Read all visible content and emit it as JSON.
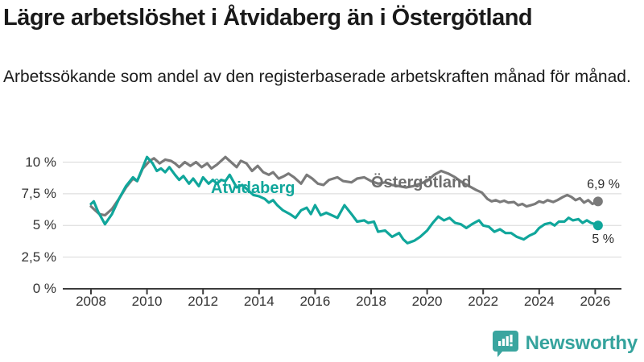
{
  "header": {
    "title": "Lägre arbetslöshet i Åtvidaberg än i Östergötland",
    "subtitle": "Arbetssökande som andel av den registerbaserade arbetskraften månad för månad."
  },
  "chart_data": {
    "type": "line",
    "title": "Lägre arbetslöshet i Åtvidaberg än i Östergötland",
    "subtitle": "Arbetssökande som andel av den registerbaserade arbetskraften månad för månad.",
    "xlabel": "",
    "ylabel": "",
    "grid": true,
    "legend_position": "inline-labels",
    "xlim": [
      2008,
      2026.3
    ],
    "ylim": [
      0,
      11
    ],
    "x_ticks": [
      2008,
      2010,
      2012,
      2014,
      2016,
      2018,
      2020,
      2022,
      2024,
      2026
    ],
    "y_ticks": [
      {
        "value": 0,
        "label": "0 %"
      },
      {
        "value": 2.5,
        "label": "2,5 %"
      },
      {
        "value": 5,
        "label": "5 %"
      },
      {
        "value": 7.5,
        "label": "7,5 %"
      },
      {
        "value": 10,
        "label": "10 %"
      }
    ],
    "series": [
      {
        "name": "Östergötland",
        "color": "#7a7a7a",
        "end_label": "6,9 %",
        "end_value": 6.9,
        "points": [
          [
            2008,
            6.5
          ],
          [
            2008.15,
            6.2
          ],
          [
            2008.3,
            5.9
          ],
          [
            2008.5,
            5.8
          ],
          [
            2008.75,
            6.3
          ],
          [
            2009,
            7.1
          ],
          [
            2009.25,
            8.0
          ],
          [
            2009.5,
            8.7
          ],
          [
            2009.65,
            8.5
          ],
          [
            2009.85,
            9.5
          ],
          [
            2010.1,
            10.1
          ],
          [
            2010.25,
            10.3
          ],
          [
            2010.45,
            9.9
          ],
          [
            2010.65,
            10.2
          ],
          [
            2010.85,
            10.1
          ],
          [
            2011,
            9.9
          ],
          [
            2011.15,
            9.6
          ],
          [
            2011.35,
            10.0
          ],
          [
            2011.55,
            9.7
          ],
          [
            2011.75,
            10.0
          ],
          [
            2011.95,
            9.6
          ],
          [
            2012.15,
            9.9
          ],
          [
            2012.3,
            9.5
          ],
          [
            2012.5,
            9.8
          ],
          [
            2012.8,
            10.4
          ],
          [
            2013,
            10.0
          ],
          [
            2013.2,
            9.6
          ],
          [
            2013.35,
            10.1
          ],
          [
            2013.55,
            9.9
          ],
          [
            2013.75,
            9.3
          ],
          [
            2013.95,
            9.7
          ],
          [
            2014.15,
            9.2
          ],
          [
            2014.35,
            9.0
          ],
          [
            2014.5,
            9.2
          ],
          [
            2014.7,
            8.7
          ],
          [
            2014.9,
            8.9
          ],
          [
            2015.05,
            9.1
          ],
          [
            2015.25,
            8.8
          ],
          [
            2015.5,
            8.3
          ],
          [
            2015.7,
            9.0
          ],
          [
            2015.9,
            8.7
          ],
          [
            2016.1,
            8.3
          ],
          [
            2016.3,
            8.2
          ],
          [
            2016.5,
            8.6
          ],
          [
            2016.8,
            8.8
          ],
          [
            2017,
            8.5
          ],
          [
            2017.3,
            8.4
          ],
          [
            2017.5,
            8.7
          ],
          [
            2017.75,
            8.8
          ],
          [
            2018,
            8.5
          ],
          [
            2018.25,
            8.3
          ],
          [
            2018.5,
            8.4
          ],
          [
            2018.75,
            8.2
          ],
          [
            2019,
            8.1
          ],
          [
            2019.25,
            8.0
          ],
          [
            2019.5,
            8.1
          ],
          [
            2019.75,
            8.3
          ],
          [
            2020,
            8.5
          ],
          [
            2020.25,
            9.0
          ],
          [
            2020.5,
            9.3
          ],
          [
            2020.75,
            9.1
          ],
          [
            2021,
            8.8
          ],
          [
            2021.25,
            8.4
          ],
          [
            2021.5,
            8.1
          ],
          [
            2021.75,
            7.8
          ],
          [
            2021.95,
            7.6
          ],
          [
            2022.15,
            7.1
          ],
          [
            2022.3,
            6.9
          ],
          [
            2022.45,
            7.0
          ],
          [
            2022.6,
            6.85
          ],
          [
            2022.75,
            6.95
          ],
          [
            2022.9,
            6.8
          ],
          [
            2023.1,
            6.85
          ],
          [
            2023.25,
            6.6
          ],
          [
            2023.4,
            6.7
          ],
          [
            2023.55,
            6.5
          ],
          [
            2023.7,
            6.6
          ],
          [
            2023.85,
            6.7
          ],
          [
            2024,
            6.9
          ],
          [
            2024.15,
            6.8
          ],
          [
            2024.3,
            7.0
          ],
          [
            2024.5,
            6.85
          ],
          [
            2024.65,
            7.0
          ],
          [
            2024.85,
            7.25
          ],
          [
            2025,
            7.4
          ],
          [
            2025.15,
            7.25
          ],
          [
            2025.3,
            7.0
          ],
          [
            2025.45,
            7.15
          ],
          [
            2025.6,
            6.8
          ],
          [
            2025.75,
            7.0
          ],
          [
            2025.9,
            6.7
          ],
          [
            2026,
            6.8
          ],
          [
            2026.1,
            6.9
          ]
        ]
      },
      {
        "name": "Åtvidaberg",
        "color": "#10a69b",
        "end_label": "5 %",
        "end_value": 5.0,
        "points": [
          [
            2008,
            6.7
          ],
          [
            2008.1,
            6.9
          ],
          [
            2008.25,
            6.1
          ],
          [
            2008.5,
            5.1
          ],
          [
            2008.75,
            5.9
          ],
          [
            2009,
            7.1
          ],
          [
            2009.25,
            8.1
          ],
          [
            2009.5,
            8.8
          ],
          [
            2009.65,
            8.5
          ],
          [
            2010,
            10.4
          ],
          [
            2010.2,
            9.9
          ],
          [
            2010.35,
            9.3
          ],
          [
            2010.5,
            9.5
          ],
          [
            2010.65,
            9.2
          ],
          [
            2010.8,
            9.6
          ],
          [
            2011,
            9.0
          ],
          [
            2011.15,
            8.6
          ],
          [
            2011.3,
            8.9
          ],
          [
            2011.5,
            8.3
          ],
          [
            2011.65,
            8.7
          ],
          [
            2011.85,
            8.1
          ],
          [
            2012,
            8.8
          ],
          [
            2012.2,
            8.3
          ],
          [
            2012.35,
            8.6
          ],
          [
            2012.5,
            8.3
          ],
          [
            2012.65,
            8.6
          ],
          [
            2012.8,
            8.5
          ],
          [
            2012.95,
            9.0
          ],
          [
            2013.2,
            8.0
          ],
          [
            2013.4,
            8.2
          ],
          [
            2013.6,
            7.8
          ],
          [
            2013.8,
            7.4
          ],
          [
            2014,
            7.3
          ],
          [
            2014.2,
            7.1
          ],
          [
            2014.35,
            6.8
          ],
          [
            2014.5,
            7.0
          ],
          [
            2014.65,
            6.6
          ],
          [
            2014.85,
            6.2
          ],
          [
            2015.1,
            5.9
          ],
          [
            2015.3,
            5.6
          ],
          [
            2015.5,
            6.2
          ],
          [
            2015.7,
            6.4
          ],
          [
            2015.85,
            5.9
          ],
          [
            2016,
            6.6
          ],
          [
            2016.2,
            5.8
          ],
          [
            2016.4,
            6.0
          ],
          [
            2016.6,
            5.8
          ],
          [
            2016.8,
            5.6
          ],
          [
            2017.05,
            6.6
          ],
          [
            2017.3,
            5.9
          ],
          [
            2017.5,
            5.3
          ],
          [
            2017.75,
            5.4
          ],
          [
            2017.9,
            5.2
          ],
          [
            2018.1,
            5.3
          ],
          [
            2018.25,
            4.5
          ],
          [
            2018.5,
            4.6
          ],
          [
            2018.75,
            4.1
          ],
          [
            2019,
            4.4
          ],
          [
            2019.15,
            3.9
          ],
          [
            2019.3,
            3.6
          ],
          [
            2019.55,
            3.8
          ],
          [
            2019.75,
            4.1
          ],
          [
            2020,
            4.6
          ],
          [
            2020.2,
            5.2
          ],
          [
            2020.4,
            5.7
          ],
          [
            2020.6,
            5.4
          ],
          [
            2020.8,
            5.6
          ],
          [
            2021,
            5.2
          ],
          [
            2021.2,
            5.1
          ],
          [
            2021.4,
            4.8
          ],
          [
            2021.6,
            5.1
          ],
          [
            2021.85,
            5.4
          ],
          [
            2022,
            5.0
          ],
          [
            2022.2,
            4.9
          ],
          [
            2022.4,
            4.5
          ],
          [
            2022.6,
            4.7
          ],
          [
            2022.8,
            4.4
          ],
          [
            2023,
            4.4
          ],
          [
            2023.2,
            4.1
          ],
          [
            2023.45,
            3.9
          ],
          [
            2023.65,
            4.2
          ],
          [
            2023.85,
            4.4
          ],
          [
            2024,
            4.8
          ],
          [
            2024.2,
            5.1
          ],
          [
            2024.4,
            5.2
          ],
          [
            2024.55,
            5.0
          ],
          [
            2024.7,
            5.3
          ],
          [
            2024.9,
            5.3
          ],
          [
            2025.05,
            5.6
          ],
          [
            2025.2,
            5.4
          ],
          [
            2025.4,
            5.5
          ],
          [
            2025.55,
            5.2
          ],
          [
            2025.7,
            5.4
          ],
          [
            2025.85,
            5.2
          ],
          [
            2026,
            5.1
          ],
          [
            2026.1,
            5.0
          ]
        ]
      }
    ],
    "style": {
      "grid_color": "#d8d8d8",
      "axis_color": "#3c3c3c",
      "line_width": 3.2,
      "end_dot_radius": 6
    }
  },
  "footer": {
    "brand": "Newsworthy",
    "brand_color": "#35a39d"
  }
}
